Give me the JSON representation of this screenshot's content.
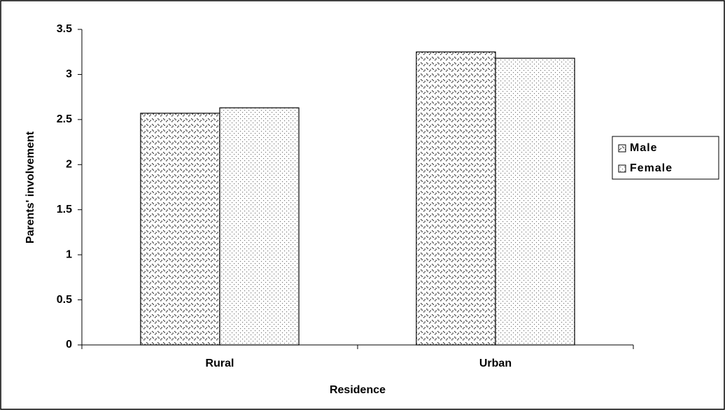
{
  "chart_data": {
    "type": "bar",
    "x_label": "Residence",
    "y_label": "Parents' involvement",
    "categories": [
      "Rural",
      "Urban"
    ],
    "series": [
      {
        "name": "Male",
        "color": "#444444",
        "values": [
          2.57,
          3.25
        ]
      },
      {
        "name": "Female",
        "color": "#777777",
        "values": [
          2.63,
          3.18
        ]
      }
    ],
    "ylim": [
      0,
      3.5
    ],
    "yticks": [
      0,
      0.5,
      1,
      1.5,
      2,
      2.5,
      3,
      3.5
    ],
    "grid": false,
    "legend": "right"
  }
}
